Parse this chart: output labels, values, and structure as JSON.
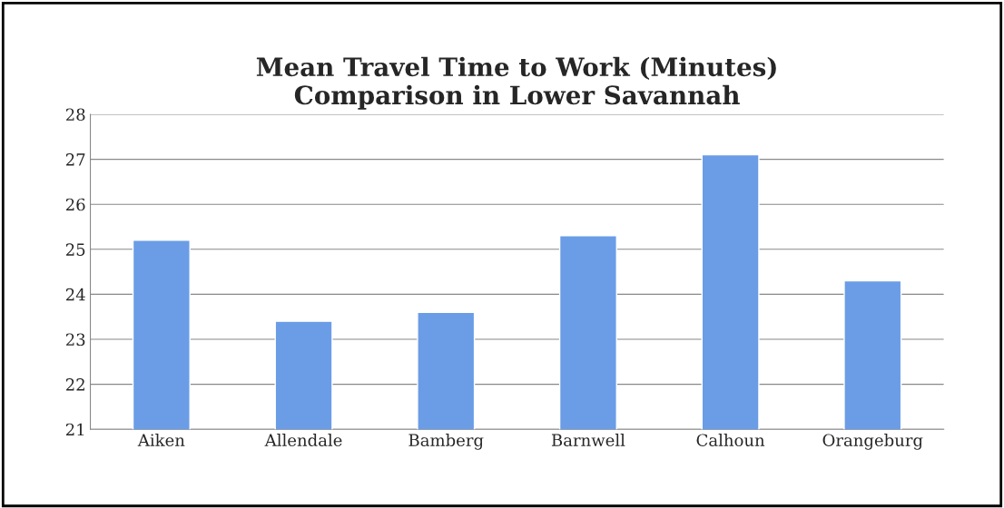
{
  "chart_data": {
    "type": "bar",
    "title": "Mean Travel Time to Work (Minutes)\nComparison in Lower Savannah",
    "categories": [
      "Aiken",
      "Allendale",
      "Bamberg",
      "Barnwell",
      "Calhoun",
      "Orangeburg"
    ],
    "values": [
      25.2,
      23.4,
      23.6,
      25.3,
      27.1,
      24.3
    ],
    "color": "#6a9de6",
    "ylim": [
      21,
      28
    ],
    "yticks": [
      21,
      22,
      23,
      24,
      25,
      26,
      27,
      28
    ],
    "grid": "y",
    "legend": false
  }
}
